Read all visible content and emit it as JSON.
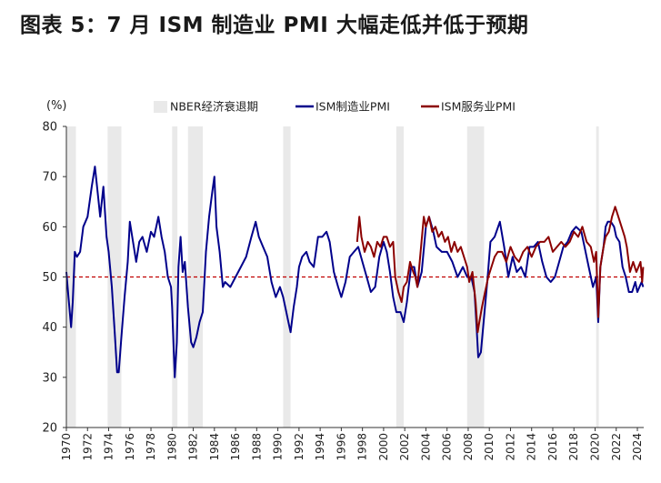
{
  "header": {
    "title": "图表 5：7 月 ISM 制造业 PMI 大幅走低并低于预期"
  },
  "colors": {
    "manufacturing": "#00008b",
    "services": "#8b0000",
    "recession": "#e9e9e9",
    "reference": "#c00000",
    "axis": "#333333"
  },
  "chart_data": {
    "type": "line",
    "title": "",
    "ylabel": "(%)",
    "xlabel": "",
    "ylim": [
      20,
      80
    ],
    "xlim": [
      1970,
      2024.6
    ],
    "yticks": [
      20,
      30,
      40,
      50,
      60,
      70,
      80
    ],
    "xticks": [
      1970,
      1972,
      1974,
      1976,
      1978,
      1980,
      1982,
      1984,
      1986,
      1988,
      1990,
      1992,
      1994,
      1996,
      1998,
      2000,
      2002,
      2004,
      2006,
      2008,
      2010,
      2012,
      2014,
      2016,
      2018,
      2020,
      2022,
      2024
    ],
    "legend": {
      "placement": "top",
      "items": [
        "NBER经济衰退期",
        "ISM制造业PMI",
        "ISM服务业PMI"
      ]
    },
    "reference_line": {
      "y": 50,
      "style": "dashed"
    },
    "recessions": [
      [
        1969.9,
        1970.9
      ],
      [
        1973.9,
        1975.2
      ],
      [
        1980.0,
        1980.5
      ],
      [
        1981.5,
        1982.9
      ],
      [
        1990.5,
        1991.2
      ],
      [
        2001.2,
        2001.9
      ],
      [
        2007.9,
        2009.5
      ],
      [
        2020.1,
        2020.35
      ]
    ],
    "series": [
      {
        "name": "ISM制造业PMI",
        "x": [
          1970.0,
          1970.2,
          1970.45,
          1970.6,
          1970.8,
          1971.0,
          1971.3,
          1971.6,
          1972.0,
          1972.4,
          1972.7,
          1973.0,
          1973.2,
          1973.5,
          1973.8,
          1974.0,
          1974.3,
          1974.6,
          1974.8,
          1974.95,
          1975.2,
          1975.5,
          1975.8,
          1976.0,
          1976.3,
          1976.6,
          1976.9,
          1977.2,
          1977.6,
          1978.0,
          1978.3,
          1978.7,
          1979.0,
          1979.3,
          1979.6,
          1979.9,
          1980.0,
          1980.25,
          1980.45,
          1980.6,
          1980.8,
          1981.0,
          1981.2,
          1981.5,
          1981.8,
          1982.0,
          1982.3,
          1982.6,
          1982.9,
          1983.2,
          1983.5,
          1983.8,
          1984.0,
          1984.2,
          1984.5,
          1984.8,
          1985.0,
          1985.5,
          1986.0,
          1986.5,
          1987.0,
          1987.5,
          1987.9,
          1988.2,
          1988.6,
          1989.0,
          1989.4,
          1989.8,
          1990.2,
          1990.5,
          1990.8,
          1991.0,
          1991.2,
          1991.5,
          1991.8,
          1992.0,
          1992.3,
          1992.7,
          1993.0,
          1993.4,
          1993.8,
          1994.2,
          1994.6,
          1994.9,
          1995.3,
          1995.7,
          1996.0,
          1996.4,
          1996.8,
          1997.2,
          1997.6,
          1998.0,
          1998.4,
          1998.8,
          1999.2,
          1999.6,
          2000.0,
          2000.3,
          2000.6,
          2000.9,
          2001.2,
          2001.6,
          2001.9,
          2002.2,
          2002.6,
          2002.9,
          2003.2,
          2003.6,
          2004.0,
          2004.3,
          2004.7,
          2005.0,
          2005.5,
          2006.0,
          2006.5,
          2007.0,
          2007.5,
          2007.9,
          2008.3,
          2008.6,
          2008.8,
          2008.95,
          2009.2,
          2009.5,
          2009.8,
          2010.1,
          2010.5,
          2011.0,
          2011.4,
          2011.8,
          2012.2,
          2012.6,
          2013.0,
          2013.4,
          2013.8,
          2014.2,
          2014.6,
          2015.0,
          2015.4,
          2015.8,
          2016.2,
          2016.6,
          2017.0,
          2017.4,
          2017.8,
          2018.2,
          2018.7,
          2019.0,
          2019.4,
          2019.8,
          2020.1,
          2020.3,
          2020.5,
          2020.8,
          2021.0,
          2021.2,
          2021.5,
          2021.8,
          2022.0,
          2022.3,
          2022.6,
          2022.9,
          2023.2,
          2023.5,
          2023.8,
          2024.0,
          2024.2,
          2024.4,
          2024.55
        ],
        "values": [
          51,
          46,
          40,
          45,
          55,
          54,
          55,
          60,
          62,
          68,
          72,
          66,
          62,
          68,
          58,
          55,
          48,
          38,
          31,
          31,
          38,
          46,
          53,
          61,
          57,
          53,
          57,
          58,
          55,
          59,
          58,
          62,
          58,
          55,
          50,
          48,
          44,
          30,
          37,
          52,
          58,
          51,
          53,
          44,
          37,
          36,
          38,
          41,
          43,
          55,
          62,
          67,
          70,
          60,
          55,
          48,
          49,
          48,
          50,
          52,
          54,
          58,
          61,
          58,
          56,
          54,
          49,
          46,
          48,
          46,
          43,
          41,
          39,
          44,
          48,
          52,
          54,
          55,
          53,
          52,
          58,
          58,
          59,
          57,
          51,
          48,
          46,
          49,
          54,
          55,
          56,
          53,
          50,
          47,
          48,
          54,
          57,
          55,
          51,
          46,
          43,
          43,
          41,
          45,
          52,
          52,
          48,
          51,
          60,
          62,
          59,
          56,
          55,
          55,
          53,
          50,
          52,
          50,
          50,
          47,
          40,
          34,
          35,
          42,
          49,
          57,
          58,
          61,
          56,
          50,
          54,
          51,
          52,
          50,
          56,
          56,
          57,
          53,
          50,
          49,
          50,
          53,
          56,
          57,
          59,
          60,
          59,
          56,
          52,
          48,
          50,
          41,
          52,
          56,
          60,
          61,
          61,
          60,
          58,
          57,
          52,
          50,
          47,
          47,
          49,
          47,
          48,
          49,
          48
        ]
      },
      {
        "name": "ISM服务业PMI",
        "x": [
          1997.5,
          1997.7,
          1997.9,
          1998.2,
          1998.5,
          1998.8,
          1999.1,
          1999.4,
          1999.7,
          2000.0,
          2000.3,
          2000.6,
          2000.9,
          2001.1,
          2001.4,
          2001.7,
          2001.9,
          2002.2,
          2002.5,
          2002.8,
          2003.0,
          2003.2,
          2003.5,
          2003.8,
          2004.0,
          2004.3,
          2004.6,
          2004.9,
          2005.2,
          2005.5,
          2005.8,
          2006.1,
          2006.4,
          2006.7,
          2007.0,
          2007.3,
          2007.6,
          2007.9,
          2008.1,
          2008.4,
          2008.7,
          2008.9,
          2009.05,
          2009.3,
          2009.6,
          2009.9,
          2010.2,
          2010.5,
          2010.8,
          2011.2,
          2011.6,
          2012.0,
          2012.4,
          2012.8,
          2013.2,
          2013.6,
          2014.0,
          2014.4,
          2014.8,
          2015.2,
          2015.6,
          2016.0,
          2016.4,
          2016.8,
          2017.2,
          2017.6,
          2018.0,
          2018.4,
          2018.8,
          2019.2,
          2019.6,
          2019.9,
          2020.1,
          2020.3,
          2020.5,
          2020.8,
          2021.0,
          2021.3,
          2021.6,
          2021.9,
          2022.2,
          2022.5,
          2022.8,
          2023.0,
          2023.3,
          2023.6,
          2023.9,
          2024.1,
          2024.3,
          2024.45,
          2024.55
        ],
        "values": [
          57,
          62,
          58,
          55,
          57,
          56,
          54,
          57,
          56,
          58,
          58,
          56,
          57,
          50,
          47,
          45,
          48,
          49,
          53,
          51,
          50,
          48,
          55,
          62,
          60,
          62,
          59,
          60,
          58,
          59,
          57,
          58,
          55,
          57,
          55,
          56,
          54,
          52,
          49,
          51,
          45,
          39,
          41,
          44,
          47,
          50,
          52,
          54,
          55,
          55,
          53,
          56,
          54,
          53,
          55,
          56,
          54,
          56,
          57,
          57,
          58,
          55,
          56,
          57,
          56,
          57,
          59,
          58,
          60,
          57,
          56,
          53,
          55,
          42,
          52,
          56,
          58,
          59,
          62,
          64,
          62,
          60,
          58,
          56,
          51,
          53,
          51,
          52,
          53,
          49,
          52
        ]
      }
    ]
  }
}
